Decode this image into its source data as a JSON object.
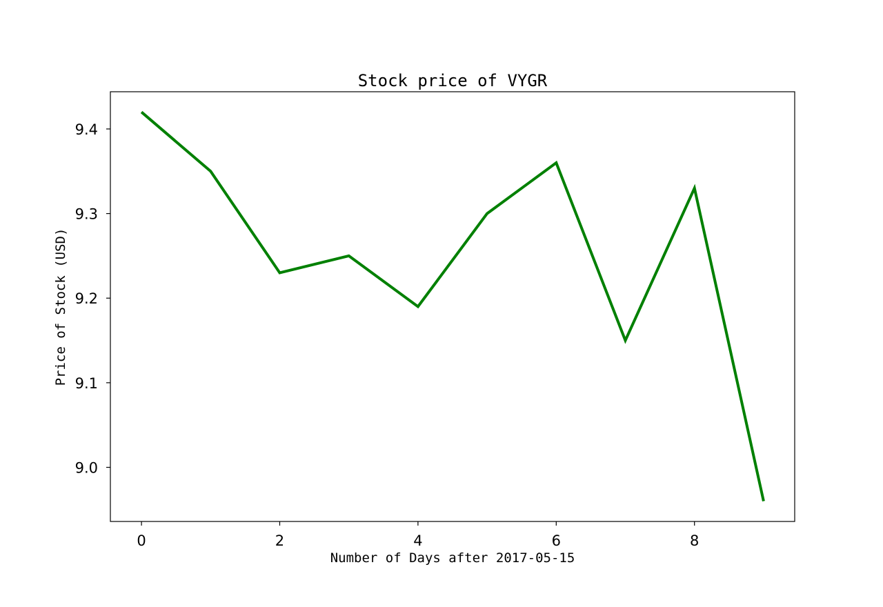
{
  "chart_data": {
    "type": "line",
    "title": "Stock price of VYGR",
    "xlabel": "Number of Days after 2017-05-15",
    "ylabel": "Price of Stock (USD)",
    "x": [
      0,
      1,
      2,
      3,
      4,
      5,
      6,
      7,
      8,
      9
    ],
    "series": [
      {
        "values": [
          9.42,
          9.35,
          9.23,
          9.25,
          9.19,
          9.3,
          9.36,
          9.15,
          9.33,
          8.96
        ],
        "color": "#008000"
      }
    ],
    "xlim": [
      -0.45,
      9.45
    ],
    "ylim": [
      8.936,
      9.444
    ],
    "xticks": [
      0,
      2,
      4,
      6,
      8
    ],
    "xtick_labels": [
      "0",
      "2",
      "4",
      "6",
      "8"
    ],
    "yticks": [
      9.0,
      9.1,
      9.2,
      9.3,
      9.4
    ],
    "ytick_labels": [
      "9.0",
      "9.1",
      "9.2",
      "9.3",
      "9.4"
    ],
    "grid": false,
    "legend": false
  }
}
